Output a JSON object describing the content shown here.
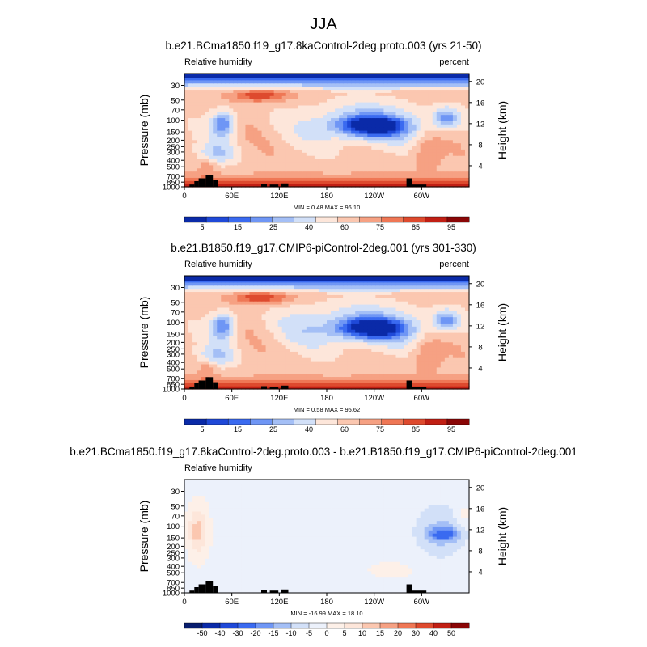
{
  "figure": {
    "title": "JJA"
  },
  "palettes": {
    "rh": [
      "#0a2aa8",
      "#1f49d8",
      "#3a6af0",
      "#6f96f5",
      "#a4bff6",
      "#d2e0f8",
      "#fde6da",
      "#fbc7b0",
      "#f6a183",
      "#ef7755",
      "#de4a2e",
      "#c11f14",
      "#8a0606"
    ],
    "diff": [
      "#081d6e",
      "#0a2aa8",
      "#1f49d8",
      "#3a6af0",
      "#6f96f5",
      "#a4bff6",
      "#d2e0f8",
      "#ecf1fb",
      "#fdf0e8",
      "#fde6da",
      "#fbc7b0",
      "#f6a183",
      "#ef7755",
      "#de4a2e",
      "#c11f14",
      "#8a0606"
    ]
  },
  "chart_data": [
    {
      "type": "heatmap",
      "title": "b.e21.BCma1850.f19_g17.8kaControl-2deg.proto.003 (yrs 21-50)",
      "variable": "Relative humidity",
      "units": "percent",
      "ylabel": "Pressure (mb)",
      "y2label": "Height (km)",
      "xticks": [
        "0",
        "60E",
        "120E",
        "180",
        "120W",
        "60W"
      ],
      "yticks": [
        "1000",
        "850",
        "700",
        "500",
        "400",
        "300",
        "250",
        "200",
        "150",
        "100",
        "70",
        "50",
        "30"
      ],
      "y2ticks": [
        "4",
        "8",
        "12",
        "16",
        "20"
      ],
      "stats": "MIN =   0.48   MAX =  96.10",
      "colorbar": {
        "labels": [
          "5",
          "15",
          "25",
          "40",
          "60",
          "75",
          "85",
          "95"
        ]
      },
      "scheme": "rh",
      "variant": "a"
    },
    {
      "type": "heatmap",
      "title": "b.e21.B1850.f19_g17.CMIP6-piControl-2deg.001 (yrs 301-330)",
      "variable": "Relative humidity",
      "units": "percent",
      "ylabel": "Pressure (mb)",
      "y2label": "Height (km)",
      "xticks": [
        "0",
        "60E",
        "120E",
        "180",
        "120W",
        "60W"
      ],
      "yticks": [
        "1000",
        "850",
        "700",
        "500",
        "400",
        "300",
        "250",
        "200",
        "150",
        "100",
        "70",
        "50",
        "30"
      ],
      "y2ticks": [
        "4",
        "8",
        "12",
        "16",
        "20"
      ],
      "stats": "MIN =   0.58   MAX =  95.62",
      "colorbar": {
        "labels": [
          "5",
          "15",
          "25",
          "40",
          "60",
          "75",
          "85",
          "95"
        ]
      },
      "scheme": "rh",
      "variant": "b"
    },
    {
      "type": "heatmap",
      "title": "b.e21.BCma1850.f19_g17.8kaControl-2deg.proto.003 - b.e21.B1850.f19_g17.CMIP6-piControl-2deg.001",
      "variable": "Relative humidity",
      "units": "",
      "ylabel": "Pressure (mb)",
      "y2label": "Height (km)",
      "xticks": [
        "0",
        "60E",
        "120E",
        "180",
        "120W",
        "60W"
      ],
      "yticks": [
        "1000",
        "850",
        "700",
        "500",
        "400",
        "300",
        "250",
        "200",
        "150",
        "100",
        "70",
        "50",
        "30"
      ],
      "y2ticks": [
        "4",
        "8",
        "12",
        "16",
        "20"
      ],
      "stats": "MIN = -16.99   MAX =  18.10",
      "colorbar": {
        "labels": [
          "-50",
          "-40",
          "-30",
          "-20",
          "-15",
          "-10",
          "-5",
          "0",
          "5",
          "10",
          "15",
          "20",
          "30",
          "40",
          "50"
        ]
      },
      "scheme": "diff",
      "variant": "diff"
    }
  ]
}
